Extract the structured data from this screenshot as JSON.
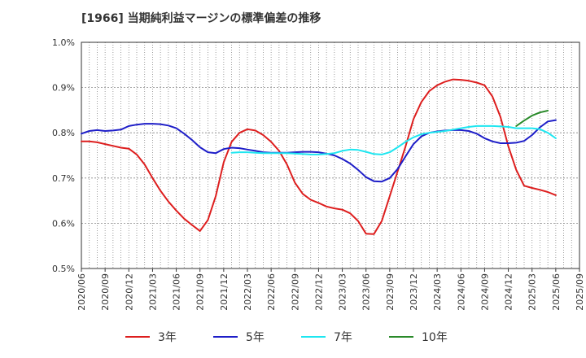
{
  "chart_data": {
    "type": "line",
    "title": "[1966]  当期純利益マージンの標準偏差の推移",
    "xlabel": "",
    "ylabel": "",
    "y_unit": "%",
    "ylim": [
      0.5,
      1.0
    ],
    "y_ticks": [
      {
        "value": 1.0,
        "label": "1.0%"
      },
      {
        "value": 0.9,
        "label": "0.9%"
      },
      {
        "value": 0.8,
        "label": "0.8%"
      },
      {
        "value": 0.7,
        "label": "0.7%"
      },
      {
        "value": 0.6,
        "label": "0.6%"
      },
      {
        "value": 0.5,
        "label": "0.5%"
      }
    ],
    "x_start": "2020/06",
    "x_end": "2025/09",
    "x_ticks": [
      "2020/06",
      "2020/09",
      "2020/12",
      "2021/03",
      "2021/06",
      "2021/09",
      "2021/12",
      "2022/03",
      "2022/06",
      "2022/09",
      "2022/12",
      "2023/03",
      "2023/06",
      "2023/09",
      "2023/12",
      "2024/03",
      "2024/06",
      "2024/09",
      "2024/12",
      "2025/03",
      "2025/06",
      "2025/09"
    ],
    "grid": true,
    "legend_position": "bottom",
    "series": [
      {
        "name": "3年",
        "color": "#dd1e1e",
        "points": [
          [
            "2020/06",
            0.781
          ],
          [
            "2020/07",
            0.781
          ],
          [
            "2020/08",
            0.779
          ],
          [
            "2020/09",
            0.775
          ],
          [
            "2020/10",
            0.771
          ],
          [
            "2020/11",
            0.767
          ],
          [
            "2020/12",
            0.765
          ],
          [
            "2021/01",
            0.752
          ],
          [
            "2021/02",
            0.73
          ],
          [
            "2021/03",
            0.7
          ],
          [
            "2021/04",
            0.672
          ],
          [
            "2021/05",
            0.648
          ],
          [
            "2021/06",
            0.628
          ],
          [
            "2021/07",
            0.61
          ],
          [
            "2021/08",
            0.596
          ],
          [
            "2021/09",
            0.583
          ],
          [
            "2021/10",
            0.607
          ],
          [
            "2021/11",
            0.66
          ],
          [
            "2021/12",
            0.735
          ],
          [
            "2022/01",
            0.78
          ],
          [
            "2022/02",
            0.8
          ],
          [
            "2022/03",
            0.808
          ],
          [
            "2022/04",
            0.805
          ],
          [
            "2022/05",
            0.795
          ],
          [
            "2022/06",
            0.78
          ],
          [
            "2022/07",
            0.76
          ],
          [
            "2022/08",
            0.73
          ],
          [
            "2022/09",
            0.69
          ],
          [
            "2022/10",
            0.665
          ],
          [
            "2022/11",
            0.652
          ],
          [
            "2022/12",
            0.645
          ],
          [
            "2023/01",
            0.637
          ],
          [
            "2023/02",
            0.633
          ],
          [
            "2023/03",
            0.63
          ],
          [
            "2023/04",
            0.622
          ],
          [
            "2023/05",
            0.605
          ],
          [
            "2023/06",
            0.577
          ],
          [
            "2023/07",
            0.576
          ],
          [
            "2023/08",
            0.605
          ],
          [
            "2023/09",
            0.66
          ],
          [
            "2023/10",
            0.715
          ],
          [
            "2023/11",
            0.77
          ],
          [
            "2023/12",
            0.83
          ],
          [
            "2024/01",
            0.868
          ],
          [
            "2024/02",
            0.892
          ],
          [
            "2024/03",
            0.905
          ],
          [
            "2024/04",
            0.913
          ],
          [
            "2024/05",
            0.918
          ],
          [
            "2024/06",
            0.917
          ],
          [
            "2024/07",
            0.915
          ],
          [
            "2024/08",
            0.911
          ],
          [
            "2024/09",
            0.905
          ],
          [
            "2024/10",
            0.88
          ],
          [
            "2024/11",
            0.835
          ],
          [
            "2024/12",
            0.77
          ],
          [
            "2025/01",
            0.718
          ],
          [
            "2025/02",
            0.683
          ],
          [
            "2025/03",
            0.678
          ],
          [
            "2025/04",
            0.674
          ],
          [
            "2025/05",
            0.669
          ],
          [
            "2025/06",
            0.662
          ]
        ]
      },
      {
        "name": "5年",
        "color": "#1e1ec8",
        "points": [
          [
            "2020/06",
            0.798
          ],
          [
            "2020/07",
            0.804
          ],
          [
            "2020/08",
            0.806
          ],
          [
            "2020/09",
            0.804
          ],
          [
            "2020/10",
            0.805
          ],
          [
            "2020/11",
            0.807
          ],
          [
            "2020/12",
            0.815
          ],
          [
            "2021/01",
            0.818
          ],
          [
            "2021/02",
            0.82
          ],
          [
            "2021/03",
            0.82
          ],
          [
            "2021/04",
            0.819
          ],
          [
            "2021/05",
            0.816
          ],
          [
            "2021/06",
            0.81
          ],
          [
            "2021/07",
            0.798
          ],
          [
            "2021/08",
            0.784
          ],
          [
            "2021/09",
            0.768
          ],
          [
            "2021/10",
            0.757
          ],
          [
            "2021/11",
            0.755
          ],
          [
            "2021/12",
            0.764
          ],
          [
            "2022/01",
            0.767
          ],
          [
            "2022/02",
            0.766
          ],
          [
            "2022/03",
            0.763
          ],
          [
            "2022/04",
            0.76
          ],
          [
            "2022/05",
            0.757
          ],
          [
            "2022/06",
            0.756
          ],
          [
            "2022/07",
            0.756
          ],
          [
            "2022/08",
            0.756
          ],
          [
            "2022/09",
            0.757
          ],
          [
            "2022/10",
            0.758
          ],
          [
            "2022/11",
            0.758
          ],
          [
            "2022/12",
            0.757
          ],
          [
            "2023/01",
            0.754
          ],
          [
            "2023/02",
            0.75
          ],
          [
            "2023/03",
            0.742
          ],
          [
            "2023/04",
            0.732
          ],
          [
            "2023/05",
            0.718
          ],
          [
            "2023/06",
            0.702
          ],
          [
            "2023/07",
            0.693
          ],
          [
            "2023/08",
            0.692
          ],
          [
            "2023/09",
            0.7
          ],
          [
            "2023/10",
            0.72
          ],
          [
            "2023/11",
            0.748
          ],
          [
            "2023/12",
            0.775
          ],
          [
            "2024/01",
            0.792
          ],
          [
            "2024/02",
            0.8
          ],
          [
            "2024/03",
            0.803
          ],
          [
            "2024/04",
            0.805
          ],
          [
            "2024/05",
            0.806
          ],
          [
            "2024/06",
            0.806
          ],
          [
            "2024/07",
            0.804
          ],
          [
            "2024/08",
            0.798
          ],
          [
            "2024/09",
            0.788
          ],
          [
            "2024/10",
            0.781
          ],
          [
            "2024/11",
            0.777
          ],
          [
            "2024/12",
            0.777
          ],
          [
            "2025/01",
            0.778
          ],
          [
            "2025/02",
            0.782
          ],
          [
            "2025/03",
            0.795
          ],
          [
            "2025/04",
            0.812
          ],
          [
            "2025/05",
            0.825
          ],
          [
            "2025/06",
            0.828
          ]
        ]
      },
      {
        "name": "7年",
        "color": "#1ee6f0",
        "points": [
          [
            "2022/01",
            0.756
          ],
          [
            "2022/02",
            0.757
          ],
          [
            "2022/03",
            0.757
          ],
          [
            "2022/04",
            0.756
          ],
          [
            "2022/05",
            0.755
          ],
          [
            "2022/06",
            0.755
          ],
          [
            "2022/07",
            0.755
          ],
          [
            "2022/08",
            0.755
          ],
          [
            "2022/09",
            0.754
          ],
          [
            "2022/10",
            0.753
          ],
          [
            "2022/11",
            0.752
          ],
          [
            "2022/12",
            0.752
          ],
          [
            "2023/01",
            0.753
          ],
          [
            "2023/02",
            0.755
          ],
          [
            "2023/03",
            0.76
          ],
          [
            "2023/04",
            0.763
          ],
          [
            "2023/05",
            0.762
          ],
          [
            "2023/06",
            0.758
          ],
          [
            "2023/07",
            0.753
          ],
          [
            "2023/08",
            0.752
          ],
          [
            "2023/09",
            0.757
          ],
          [
            "2023/10",
            0.768
          ],
          [
            "2023/11",
            0.78
          ],
          [
            "2023/12",
            0.79
          ],
          [
            "2024/01",
            0.797
          ],
          [
            "2024/02",
            0.8
          ],
          [
            "2024/03",
            0.802
          ],
          [
            "2024/04",
            0.804
          ],
          [
            "2024/05",
            0.807
          ],
          [
            "2024/06",
            0.81
          ],
          [
            "2024/07",
            0.813
          ],
          [
            "2024/08",
            0.815
          ],
          [
            "2024/09",
            0.815
          ],
          [
            "2024/10",
            0.815
          ],
          [
            "2024/11",
            0.814
          ],
          [
            "2024/12",
            0.813
          ],
          [
            "2025/01",
            0.81
          ],
          [
            "2025/02",
            0.81
          ],
          [
            "2025/03",
            0.81
          ],
          [
            "2025/04",
            0.808
          ],
          [
            "2025/05",
            0.8
          ],
          [
            "2025/06",
            0.788
          ]
        ]
      },
      {
        "name": "10年",
        "color": "#2a8a2a",
        "points": [
          [
            "2025/01",
            0.815
          ],
          [
            "2025/02",
            0.827
          ],
          [
            "2025/03",
            0.838
          ],
          [
            "2025/04",
            0.845
          ],
          [
            "2025/05",
            0.849
          ]
        ]
      }
    ]
  }
}
